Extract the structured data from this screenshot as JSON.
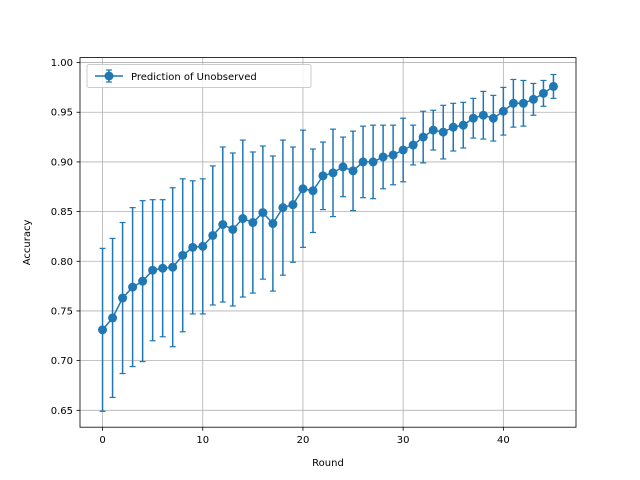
{
  "chart_data": {
    "type": "line",
    "title": "",
    "xlabel": "Round",
    "ylabel": "Accuracy",
    "xlim": [
      -2.25,
      47.25
    ],
    "ylim": [
      0.633,
      1.005
    ],
    "xticks": [
      0,
      10,
      20,
      30,
      40
    ],
    "yticks": [
      0.65,
      0.7,
      0.75,
      0.8,
      0.85,
      0.9,
      0.95,
      1.0
    ],
    "xtick_labels": [
      "0",
      "10",
      "20",
      "30",
      "40"
    ],
    "ytick_labels": [
      "0.65",
      "0.70",
      "0.75",
      "0.80",
      "0.85",
      "0.90",
      "0.95",
      "1.00"
    ],
    "grid": true,
    "legend_position": "upper left",
    "series": [
      {
        "name": "Prediction of Unobserved",
        "color": "#1f77b4",
        "marker": "circle",
        "error_bars": true,
        "x": [
          0,
          1,
          2,
          3,
          4,
          5,
          6,
          7,
          8,
          9,
          10,
          11,
          12,
          13,
          14,
          15,
          16,
          17,
          18,
          19,
          20,
          21,
          22,
          23,
          24,
          25,
          26,
          27,
          28,
          29,
          30,
          31,
          32,
          33,
          34,
          35,
          36,
          37,
          38,
          39,
          40,
          41,
          42,
          43,
          44,
          45
        ],
        "y": [
          0.731,
          0.743,
          0.763,
          0.774,
          0.78,
          0.791,
          0.793,
          0.794,
          0.806,
          0.814,
          0.815,
          0.826,
          0.837,
          0.832,
          0.843,
          0.839,
          0.849,
          0.838,
          0.854,
          0.857,
          0.873,
          0.871,
          0.886,
          0.889,
          0.895,
          0.891,
          0.9,
          0.9,
          0.905,
          0.907,
          0.912,
          0.917,
          0.925,
          0.932,
          0.93,
          0.935,
          0.937,
          0.944,
          0.947,
          0.944,
          0.951,
          0.959,
          0.959,
          0.963,
          0.969,
          0.976
        ],
        "err": [
          0.082,
          0.08,
          0.076,
          0.08,
          0.081,
          0.071,
          0.069,
          0.08,
          0.077,
          0.067,
          0.068,
          0.07,
          0.078,
          0.077,
          0.079,
          0.071,
          0.067,
          0.068,
          0.068,
          0.058,
          0.059,
          0.042,
          0.034,
          0.044,
          0.03,
          0.04,
          0.036,
          0.037,
          0.032,
          0.03,
          0.032,
          0.02,
          0.026,
          0.02,
          0.027,
          0.024,
          0.023,
          0.02,
          0.024,
          0.023,
          0.024,
          0.024,
          0.023,
          0.016,
          0.013,
          0.012
        ]
      }
    ]
  }
}
